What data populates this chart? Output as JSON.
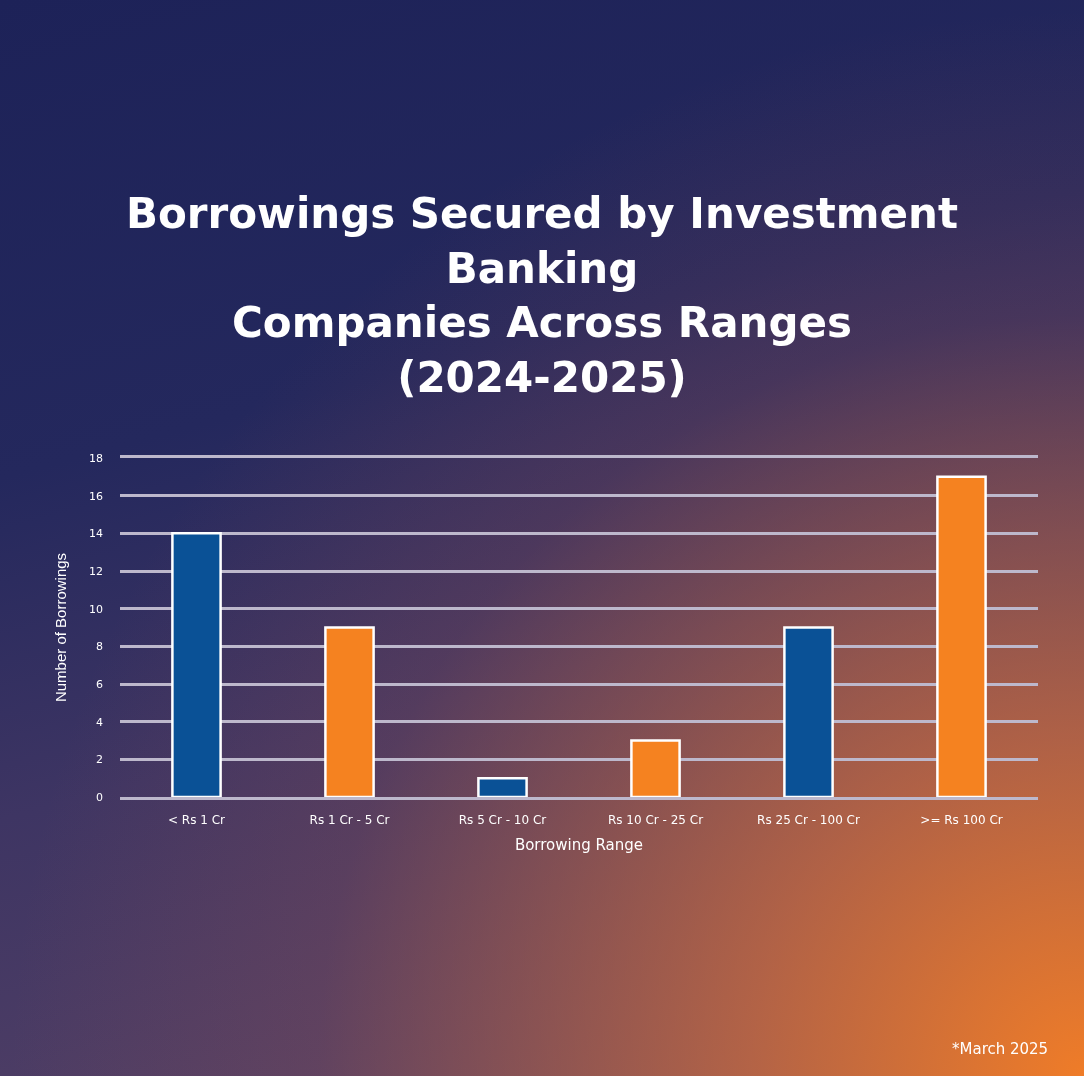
{
  "chart_data": {
    "type": "bar",
    "title": "Borrowings Secured by Investment\nBanking\nCompanies Across Ranges\n(2024-2025)",
    "xlabel": "Borrowing Range",
    "ylabel": "Number of Borrowings",
    "categories": [
      "< Rs 1 Cr",
      "Rs 1 Cr - 5 Cr",
      "Rs 5 Cr - 10 Cr",
      "Rs 10 Cr - 25 Cr",
      "Rs 25 Cr - 100 Cr",
      ">= Rs 100 Cr"
    ],
    "values": [
      14,
      9,
      1,
      3,
      9,
      17
    ],
    "colors": [
      "#0a5196",
      "#f58220",
      "#0a5196",
      "#f58220",
      "#0a5196",
      "#f58220"
    ],
    "ylim": [
      0,
      18
    ],
    "yticks": [
      0,
      2,
      4,
      6,
      8,
      10,
      12,
      14,
      16,
      18
    ],
    "grid": "y",
    "annotations": [
      "*March 2025"
    ]
  }
}
